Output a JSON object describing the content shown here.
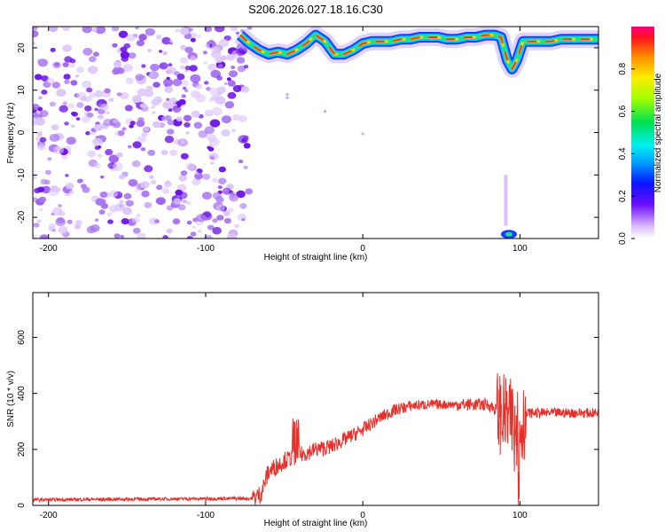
{
  "title": "S206.2026.027.18.16.C30",
  "colors": {
    "snr_line": "#e8302a",
    "scatter": "#7a1ee0",
    "ridge_core": "#ff2a2a",
    "ridge_mid": "#22e08a",
    "ridge_edge": "#1b3cff"
  },
  "chart_data": [
    {
      "name": "spectrogram",
      "type": "heatmap",
      "xlabel": "Height of straight line (km)",
      "ylabel": "Frequency (Hz)",
      "xlim": [
        -210,
        150
      ],
      "ylim": [
        -25,
        25
      ],
      "xticks": [
        -200,
        -100,
        0,
        100
      ],
      "xtick_labels": [
        "-200",
        "-100",
        "0",
        "100"
      ],
      "yticks": [
        -20,
        -10,
        0,
        10,
        20
      ],
      "ytick_labels": [
        "-20",
        "-10",
        "0",
        "10",
        "20"
      ],
      "noise_region_x": [
        -210,
        -72
      ],
      "ridge": {
        "x": [
          -78,
          -72,
          -66,
          -60,
          -54,
          -48,
          -42,
          -36,
          -30,
          -24,
          -18,
          -12,
          -6,
          0,
          6,
          12,
          18,
          24,
          30,
          36,
          42,
          48,
          54,
          60,
          66,
          72,
          78,
          84,
          88,
          92,
          95,
          98,
          102,
          108,
          114,
          120,
          126,
          132,
          138,
          144,
          150
        ],
        "y": [
          23,
          21,
          19.5,
          18.5,
          19,
          18.5,
          19.5,
          21,
          23,
          21.5,
          18.5,
          18.5,
          19.5,
          21,
          21.5,
          21.5,
          21.5,
          22,
          22,
          22.5,
          22.5,
          22.5,
          22,
          22,
          22.5,
          22.5,
          23,
          23,
          22.5,
          17,
          15,
          17,
          21.5,
          21.5,
          21.5,
          21.5,
          22,
          22,
          22,
          22,
          22
        ]
      },
      "colorbar": {
        "label": "Normalized spectral amplitude",
        "ticks": [
          0.0,
          0.2,
          0.4,
          0.6,
          0.8
        ],
        "tick_labels": [
          "0.0",
          "0.2",
          "0.4",
          "0.6",
          "0.8"
        ],
        "range": [
          0,
          1
        ]
      }
    },
    {
      "name": "snr",
      "type": "line",
      "xlabel": "Height of straight line (km)",
      "ylabel": "SNR (10 * v/v)",
      "xlim": [
        -210,
        150
      ],
      "ylim": [
        0,
        760
      ],
      "xticks": [
        -200,
        -100,
        0,
        100
      ],
      "xtick_labels": [
        "-200",
        "-100",
        "0",
        "100"
      ],
      "yticks": [
        0,
        200,
        400,
        600
      ],
      "ytick_labels": [
        "0",
        "200",
        "400",
        "600"
      ],
      "envelope": {
        "x": [
          -210,
          -70,
          -65,
          -60,
          -50,
          -40,
          -30,
          -20,
          -10,
          0,
          10,
          20,
          30,
          40,
          60,
          80,
          85,
          90,
          95,
          100,
          105,
          110,
          130,
          150
        ],
        "y": [
          20,
          25,
          40,
          120,
          160,
          180,
          200,
          210,
          240,
          270,
          310,
          340,
          355,
          360,
          360,
          360,
          340,
          320,
          300,
          280,
          330,
          330,
          330,
          330
        ]
      }
    }
  ]
}
